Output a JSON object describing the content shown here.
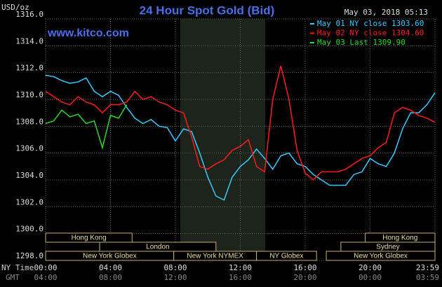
{
  "chart_data": {
    "type": "line",
    "title": "24 Hour Spot Gold (Bid)",
    "y_unit": "USD/oz",
    "source": "www.kitco.com",
    "timestamp": "May 03, 2018 05:13",
    "x_axis_label": "NY Time",
    "x2_axis_label": "GMT",
    "x": [
      0,
      0.5,
      1,
      1.5,
      2,
      2.5,
      3,
      3.5,
      4,
      4.5,
      5,
      5.5,
      6,
      6.5,
      7,
      7.5,
      8,
      8.5,
      9,
      9.5,
      10,
      10.5,
      11,
      11.5,
      12,
      12.5,
      13,
      13.5,
      14,
      14.5,
      15,
      15.5,
      16,
      16.5,
      17,
      17.5,
      18,
      18.5,
      19,
      19.5,
      20,
      20.5,
      21,
      21.5,
      22,
      22.5,
      23,
      23.5,
      24
    ],
    "xlim": [
      0,
      24
    ],
    "xticks": [
      {
        "value": 0,
        "label": "00:00"
      },
      {
        "value": 4,
        "label": "04:00"
      },
      {
        "value": 8,
        "label": "08:00"
      },
      {
        "value": 12,
        "label": "12:00"
      },
      {
        "value": 16,
        "label": "16:00"
      },
      {
        "value": 20,
        "label": "20:00"
      },
      {
        "value": 24,
        "label": "23:59"
      }
    ],
    "x2ticks": [
      {
        "value": 0,
        "label": "04:00"
      },
      {
        "value": 4,
        "label": "08:00"
      },
      {
        "value": 8,
        "label": "12:00"
      },
      {
        "value": 12,
        "label": "16:00"
      },
      {
        "value": 16,
        "label": "20:00"
      },
      {
        "value": 20,
        "label": "00:00"
      },
      {
        "value": 24,
        "label": "03:59"
      }
    ],
    "ylim": [
      1298,
      1316
    ],
    "yticks": [
      {
        "value": 1298,
        "label": "1298.0"
      },
      {
        "value": 1300,
        "label": "1300.0"
      },
      {
        "value": 1302,
        "label": "1302.0"
      },
      {
        "value": 1304,
        "label": "1304.0"
      },
      {
        "value": 1306,
        "label": "1306.0"
      },
      {
        "value": 1308,
        "label": "1308.0"
      },
      {
        "value": 1310,
        "label": "1310.0"
      },
      {
        "value": 1312,
        "label": "1312.0"
      },
      {
        "value": 1314,
        "label": "1314.0"
      },
      {
        "value": 1316,
        "label": "1316.0"
      }
    ],
    "grid": true,
    "series": [
      {
        "name": "May 01 NY close 1303.60",
        "color": "#33ccff",
        "values": [
          1311.8,
          1311.7,
          1311.4,
          1311.2,
          1311.3,
          1311.6,
          1310.6,
          1310.2,
          1310.6,
          1310.3,
          1309.4,
          1308.6,
          1308.2,
          1308.5,
          1308.0,
          1307.9,
          1306.9,
          1307.8,
          1307.6,
          1306.0,
          1304.2,
          1302.8,
          1302.5,
          1304.2,
          1305.0,
          1305.5,
          1306.3,
          1305.6,
          1304.8,
          1305.8,
          1306.0,
          1305.2,
          1305.0,
          1304.4,
          1304.0,
          1303.6,
          1303.6,
          1303.6,
          1304.4,
          1304.6,
          1305.6,
          1305.2,
          1305.0,
          1306.0,
          1307.8,
          1309.0,
          1309.0,
          1309.6,
          1310.5
        ]
      },
      {
        "name": "May 02 NY close 1304.60",
        "color": "#ff1a1a",
        "values": [
          1310.6,
          1310.2,
          1309.8,
          1309.6,
          1310.2,
          1309.8,
          1309.6,
          1309.0,
          1309.6,
          1309.6,
          1309.8,
          1310.6,
          1310.0,
          1310.2,
          1309.8,
          1309.6,
          1309.2,
          1309.0,
          1307.2,
          1305.0,
          1304.8,
          1305.2,
          1305.5,
          1306.2,
          1306.5,
          1307.0,
          1305.0,
          1304.6,
          1310.0,
          1312.5,
          1310.0,
          1306.2,
          1304.5,
          1304.0,
          1304.6,
          1304.6,
          1304.6,
          1304.8,
          1305.2,
          1305.6,
          1305.8,
          1306.4,
          1306.8,
          1309.0,
          1309.4,
          1309.2,
          1308.8,
          1308.6,
          1308.3
        ]
      },
      {
        "name": "May 03 Last 1309.90",
        "color": "#22dd22",
        "values": [
          1308.2,
          1308.4,
          1309.2,
          1308.7,
          1308.9,
          1308.2,
          1308.4,
          1306.4,
          1308.8,
          1308.6,
          1309.6,
          null,
          null,
          null,
          null,
          null,
          null,
          null,
          null,
          null,
          null,
          null,
          null,
          null,
          null,
          null,
          null,
          null,
          null,
          null,
          null,
          null,
          null,
          null,
          null,
          null,
          null,
          null,
          null,
          null,
          null,
          null,
          null,
          null,
          null,
          null,
          null,
          null,
          null
        ]
      }
    ],
    "sessions": [
      {
        "name": "Hong Kong",
        "start": 0,
        "end": 5.33,
        "row": 0
      },
      {
        "name": "London",
        "start": 3.33,
        "end": 10.5,
        "row": 1
      },
      {
        "name": "New York Globex",
        "start": 0,
        "end": 7.9,
        "row": 2
      },
      {
        "name": "New York NYMEX",
        "start": 7.9,
        "end": 13,
        "row": 2
      },
      {
        "name": "NY Globex",
        "start": 13,
        "end": 16.7,
        "row": 2
      },
      {
        "name": "Hong Kong",
        "start": 19.7,
        "end": 24,
        "row": 0
      },
      {
        "name": "Sydney",
        "start": 18.2,
        "end": 24,
        "row": 1
      },
      {
        "name": "New York Globex",
        "start": 17.3,
        "end": 24,
        "row": 2
      }
    ]
  }
}
